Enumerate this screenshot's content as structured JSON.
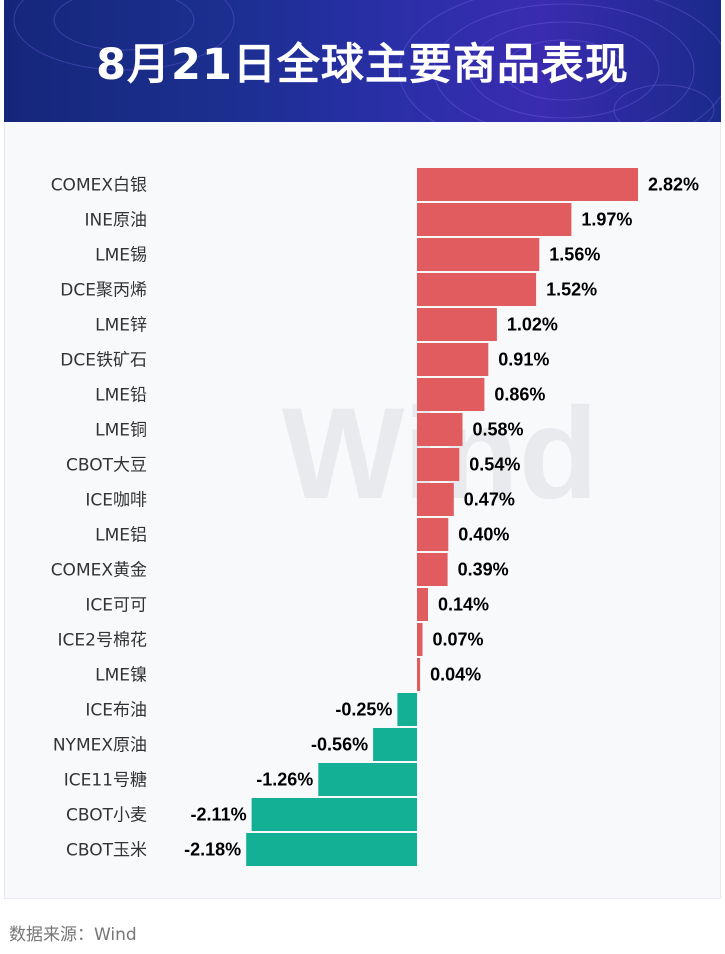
{
  "header": {
    "title": "8月21日全球主要商品表现"
  },
  "source": {
    "text": "数据来源：Wind"
  },
  "watermark": {
    "text": "Wind"
  },
  "colors": {
    "positive": "#e05c5f",
    "negative": "#13b096",
    "header_bg": "#1b2f8f"
  },
  "chart_data": {
    "type": "bar",
    "orientation": "horizontal",
    "title": "8月21日全球主要商品表现",
    "unit": "%",
    "categories": [
      "COMEX白银",
      "INE原油",
      "LME锡",
      "DCE聚丙烯",
      "LME锌",
      "DCE铁矿石",
      "LME铅",
      "LME铜",
      "CBOT大豆",
      "ICE咖啡",
      "LME铝",
      "COMEX黄金",
      "ICE可可",
      "ICE2号棉花",
      "LME镍",
      "ICE布油",
      "NYMEX原油",
      "ICE11号糖",
      "CBOT小麦",
      "CBOT玉米"
    ],
    "values": [
      2.82,
      1.97,
      1.56,
      1.52,
      1.02,
      0.91,
      0.86,
      0.58,
      0.54,
      0.47,
      0.4,
      0.39,
      0.14,
      0.07,
      0.04,
      -0.25,
      -0.56,
      -1.26,
      -2.11,
      -2.18
    ],
    "value_labels": [
      "2.82%",
      "1.97%",
      "1.56%",
      "1.52%",
      "1.02%",
      "0.91%",
      "0.86%",
      "0.58%",
      "0.54%",
      "0.47%",
      "0.40%",
      "0.39%",
      "0.14%",
      "0.07%",
      "0.04%",
      "-0.25%",
      "-0.56%",
      "-1.26%",
      "-2.11%",
      "-2.18%"
    ],
    "xlim": [
      -2.18,
      2.82
    ],
    "grid": false,
    "legend": "none"
  }
}
